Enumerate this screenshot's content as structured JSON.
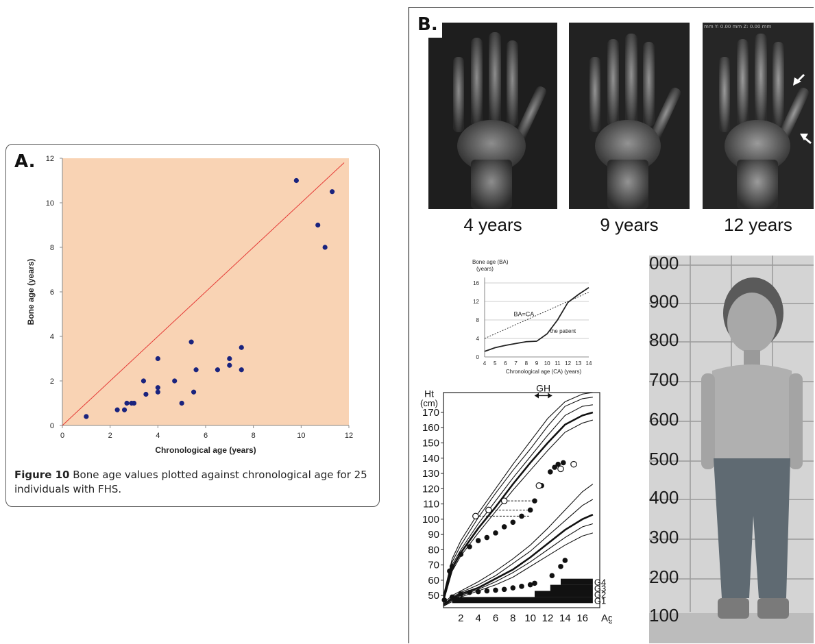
{
  "chart_data": [
    {
      "type": "scatter",
      "panel": "A.",
      "xlabel": "Chronological age (years)",
      "ylabel": "Bone age (years)",
      "xlim": [
        0,
        12
      ],
      "ylim": [
        0,
        12
      ],
      "x_ticks": [
        "0",
        "2",
        "4",
        "6",
        "8",
        "10",
        "12"
      ],
      "y_ticks": [
        "0",
        "2",
        "4",
        "6",
        "8",
        "10",
        "12"
      ],
      "grid": false,
      "background_color": "#f9d3b4",
      "point_color": "#1a237e",
      "line_color": "#e53935",
      "reference_line": {
        "from": [
          0,
          0
        ],
        "to": [
          11.8,
          11.8
        ]
      },
      "points": [
        {
          "x": 1.0,
          "y": 0.4
        },
        {
          "x": 2.3,
          "y": 0.7
        },
        {
          "x": 2.6,
          "y": 0.7
        },
        {
          "x": 2.7,
          "y": 1.0
        },
        {
          "x": 2.9,
          "y": 1.0
        },
        {
          "x": 3.0,
          "y": 1.0
        },
        {
          "x": 3.4,
          "y": 2.0
        },
        {
          "x": 3.5,
          "y": 1.4
        },
        {
          "x": 4.0,
          "y": 1.5
        },
        {
          "x": 4.0,
          "y": 1.7
        },
        {
          "x": 4.0,
          "y": 3.0
        },
        {
          "x": 4.7,
          "y": 2.0
        },
        {
          "x": 5.0,
          "y": 1.0
        },
        {
          "x": 5.4,
          "y": 3.75
        },
        {
          "x": 5.5,
          "y": 1.5
        },
        {
          "x": 5.6,
          "y": 2.5
        },
        {
          "x": 6.5,
          "y": 2.5
        },
        {
          "x": 7.0,
          "y": 2.7
        },
        {
          "x": 7.0,
          "y": 3.0
        },
        {
          "x": 7.5,
          "y": 3.5
        },
        {
          "x": 7.5,
          "y": 2.5
        },
        {
          "x": 9.8,
          "y": 11.0
        },
        {
          "x": 10.7,
          "y": 9.0
        },
        {
          "x": 11.0,
          "y": 8.0
        },
        {
          "x": 11.3,
          "y": 10.5
        }
      ],
      "caption_bold": "Figure 10",
      "caption_text": " Bone age values plotted against chronological age for 25 individuals with FHS."
    },
    {
      "type": "line",
      "panel": "B.",
      "ylabel_line1": "Bone age (BA)",
      "ylabel_line2": "(years)",
      "xlabel": "Chronological age (CA) (years)",
      "xlim": [
        4,
        14
      ],
      "ylim": [
        0,
        16
      ],
      "x_ticks": [
        4,
        5,
        6,
        7,
        8,
        9,
        10,
        11,
        12,
        13,
        14
      ],
      "y_ticks": [
        0,
        4,
        8,
        12,
        16
      ],
      "annotations": [
        "BA=CA",
        "the patient"
      ],
      "series": [
        {
          "style": "dotted",
          "x": [
            4,
            14
          ],
          "y": [
            4,
            14
          ]
        },
        {
          "style": "solid",
          "x": [
            4,
            5,
            6,
            7,
            8,
            9,
            10,
            11,
            12,
            13,
            14
          ],
          "y": [
            1.2,
            2.0,
            2.5,
            2.9,
            3.3,
            3.4,
            5.0,
            8.0,
            11.8,
            13.5,
            15.0
          ]
        }
      ]
    },
    {
      "type": "scatter",
      "panel": "growth",
      "ylabel_line1": "Ht",
      "ylabel_line2": "(cm)",
      "x_label": "Age",
      "x_ticks": [
        2,
        4,
        6,
        8,
        10,
        12,
        14,
        16
      ],
      "y_ticks": [
        50,
        60,
        70,
        80,
        90,
        100,
        110,
        120,
        130,
        140,
        150,
        160,
        170
      ],
      "xlim": [
        0,
        18
      ],
      "ylim": [
        42,
        183
      ],
      "gh_label": "GH",
      "gh_range": [
        10.5,
        12.5
      ],
      "stages": [
        {
          "label": "G1",
          "start": 1,
          "end": 17.2
        },
        {
          "label": "G2",
          "start": 10.5,
          "end": 17.2
        },
        {
          "label": "G3",
          "start": 12.3,
          "end": 17.2
        },
        {
          "label": "G4",
          "start": 13.5,
          "end": 17.2
        }
      ],
      "reference_curves": {
        "x": [
          0,
          1,
          2,
          4,
          6,
          8,
          10,
          12,
          14,
          16,
          17.2
        ],
        "tall": [
          {
            "y": [
              48,
              70,
              80,
              97,
              112,
              127,
              141,
              155,
              168,
              174,
              175
            ],
            "bold": false
          },
          {
            "y": [
              49,
              72,
              83,
              101,
              117,
              132,
              146,
              161,
              174,
              179,
              180
            ],
            "bold": false
          },
          {
            "y": [
              50,
              74,
              86,
              104,
              120,
              136,
              151,
              166,
              177,
              182,
              183
            ],
            "bold": false
          },
          {
            "y": [
              47,
              68,
              78,
              94,
              108,
              123,
              137,
              150,
              162,
              168,
              170
            ],
            "bold": true
          },
          {
            "y": [
              46,
              66,
              76,
              91,
              105,
              119,
              132,
              145,
              157,
              163,
              165
            ],
            "bold": false
          }
        ],
        "short": [
          {
            "y": [
              45,
              50,
              53,
              59,
              66,
              74,
              83,
              94,
              106,
              118,
              123
            ],
            "bold": false
          },
          {
            "y": [
              44,
              49,
              52,
              57,
              63,
              71,
              79,
              89,
              99,
              109,
              113
            ],
            "bold": false
          },
          {
            "y": [
              44,
              48,
              51,
              55,
              61,
              67,
              75,
              84,
              93,
              100,
              103
            ],
            "bold": true
          },
          {
            "y": [
              43,
              47,
              50,
              54,
              59,
              65,
              72,
              80,
              88,
              95,
              97
            ],
            "bold": false
          },
          {
            "y": [
              43,
              46,
              49,
              53,
              57,
              62,
              69,
              76,
              83,
              89,
              91
            ],
            "bold": false
          }
        ]
      },
      "filled_points": [
        {
          "x": 0.1,
          "y": 47
        },
        {
          "x": 0.7,
          "y": 66
        },
        {
          "x": 1.0,
          "y": 69
        },
        {
          "x": 2.0,
          "y": 77
        },
        {
          "x": 3.0,
          "y": 82
        },
        {
          "x": 4.0,
          "y": 86
        },
        {
          "x": 5.0,
          "y": 88
        },
        {
          "x": 6.0,
          "y": 91
        },
        {
          "x": 7.0,
          "y": 95
        },
        {
          "x": 8.0,
          "y": 98
        },
        {
          "x": 9.0,
          "y": 102
        },
        {
          "x": 10.0,
          "y": 106
        },
        {
          "x": 10.5,
          "y": 112
        },
        {
          "x": 11.3,
          "y": 122
        },
        {
          "x": 12.3,
          "y": 131
        },
        {
          "x": 12.8,
          "y": 134
        },
        {
          "x": 13.2,
          "y": 136
        },
        {
          "x": 13.8,
          "y": 137
        },
        {
          "x": 1.0,
          "y": 49
        },
        {
          "x": 2.0,
          "y": 51
        },
        {
          "x": 3.0,
          "y": 52
        },
        {
          "x": 4.0,
          "y": 52.5
        },
        {
          "x": 5.0,
          "y": 53
        },
        {
          "x": 6.0,
          "y": 53.5
        },
        {
          "x": 7.0,
          "y": 54
        },
        {
          "x": 8.0,
          "y": 55
        },
        {
          "x": 9.0,
          "y": 56
        },
        {
          "x": 10.0,
          "y": 57
        },
        {
          "x": 10.5,
          "y": 58
        },
        {
          "x": 12.5,
          "y": 63
        },
        {
          "x": 13.5,
          "y": 69
        },
        {
          "x": 14.0,
          "y": 73
        }
      ],
      "open_points": [
        {
          "x": 3.7,
          "y": 102
        },
        {
          "x": 5.2,
          "y": 106
        },
        {
          "x": 7.0,
          "y": 112
        },
        {
          "x": 11.0,
          "y": 122
        },
        {
          "x": 13.5,
          "y": 133
        },
        {
          "x": 15.0,
          "y": 136
        }
      ]
    }
  ],
  "xrays": [
    {
      "label": "4 years"
    },
    {
      "label": "9 years"
    },
    {
      "label": "12 years"
    }
  ],
  "xray_overlay": "mm Y: 0.00 mm Z: 0.00 mm",
  "photo_scale": [
    "000",
    "900",
    "800",
    "700",
    "600",
    "500",
    "400",
    "300",
    "200",
    "100"
  ]
}
